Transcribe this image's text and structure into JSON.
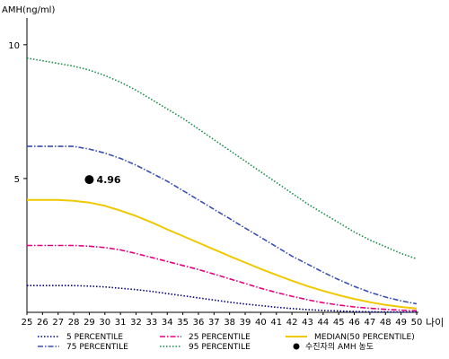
{
  "chart_data": {
    "type": "line",
    "title": "",
    "ylabel": "AMH(ng/ml)",
    "xlabel": "나이",
    "x": [
      25,
      26,
      27,
      28,
      29,
      30,
      31,
      32,
      33,
      34,
      35,
      36,
      37,
      38,
      39,
      40,
      41,
      42,
      43,
      44,
      45,
      46,
      47,
      48,
      49,
      50
    ],
    "xlim": [
      25,
      50
    ],
    "ylim": [
      0,
      11
    ],
    "yticks": [
      5,
      10
    ],
    "grid": false,
    "legend_position": "bottom",
    "series": [
      {
        "name": "5 PERCENTILE",
        "color": "#000080",
        "dash": "dotted",
        "values": [
          1.0,
          1.0,
          1.0,
          1.0,
          0.98,
          0.95,
          0.9,
          0.85,
          0.78,
          0.7,
          0.62,
          0.54,
          0.46,
          0.38,
          0.31,
          0.25,
          0.19,
          0.14,
          0.1,
          0.07,
          0.05,
          0.03,
          0.02,
          0.015,
          0.01,
          0.01
        ]
      },
      {
        "name": "25 PERCENTILE",
        "color": "#e6007e",
        "dash": "dashdot",
        "values": [
          2.5,
          2.5,
          2.5,
          2.5,
          2.47,
          2.42,
          2.33,
          2.2,
          2.05,
          1.9,
          1.75,
          1.6,
          1.43,
          1.25,
          1.08,
          0.9,
          0.74,
          0.6,
          0.47,
          0.36,
          0.27,
          0.2,
          0.15,
          0.11,
          0.08,
          0.06
        ]
      },
      {
        "name": "MEDIAN(50 PERCENTILE)",
        "color": "#f0c800",
        "dash": "solid",
        "values": [
          4.2,
          4.2,
          4.2,
          4.17,
          4.1,
          3.98,
          3.8,
          3.6,
          3.36,
          3.1,
          2.85,
          2.6,
          2.35,
          2.1,
          1.86,
          1.62,
          1.4,
          1.18,
          0.98,
          0.8,
          0.64,
          0.5,
          0.38,
          0.28,
          0.2,
          0.14
        ]
      },
      {
        "name": "75 PERCENTILE",
        "color": "#3a4fb0",
        "dash": "dashdot",
        "values": [
          6.2,
          6.2,
          6.2,
          6.2,
          6.1,
          5.95,
          5.75,
          5.5,
          5.2,
          4.9,
          4.55,
          4.2,
          3.85,
          3.5,
          3.15,
          2.8,
          2.45,
          2.1,
          1.8,
          1.5,
          1.22,
          0.97,
          0.75,
          0.57,
          0.43,
          0.32
        ]
      },
      {
        "name": "95 PERCENTILE",
        "color": "#1a8a4a",
        "dash": "dotted",
        "values": [
          9.5,
          9.4,
          9.3,
          9.2,
          9.05,
          8.85,
          8.6,
          8.3,
          7.95,
          7.6,
          7.25,
          6.85,
          6.45,
          6.05,
          5.65,
          5.25,
          4.85,
          4.45,
          4.05,
          3.7,
          3.35,
          3.0,
          2.7,
          2.45,
          2.2,
          2.0
        ]
      }
    ],
    "marker": {
      "name": "수진자의 AMH 농도",
      "x": 29,
      "y": 4.96,
      "label": "4.96",
      "color": "#000000"
    },
    "legend_order": [
      "5 PERCENTILE",
      "25 PERCENTILE",
      "MEDIAN(50 PERCENTILE)",
      "75 PERCENTILE",
      "95 PERCENTILE",
      "수진자의 AMH 농도"
    ]
  }
}
